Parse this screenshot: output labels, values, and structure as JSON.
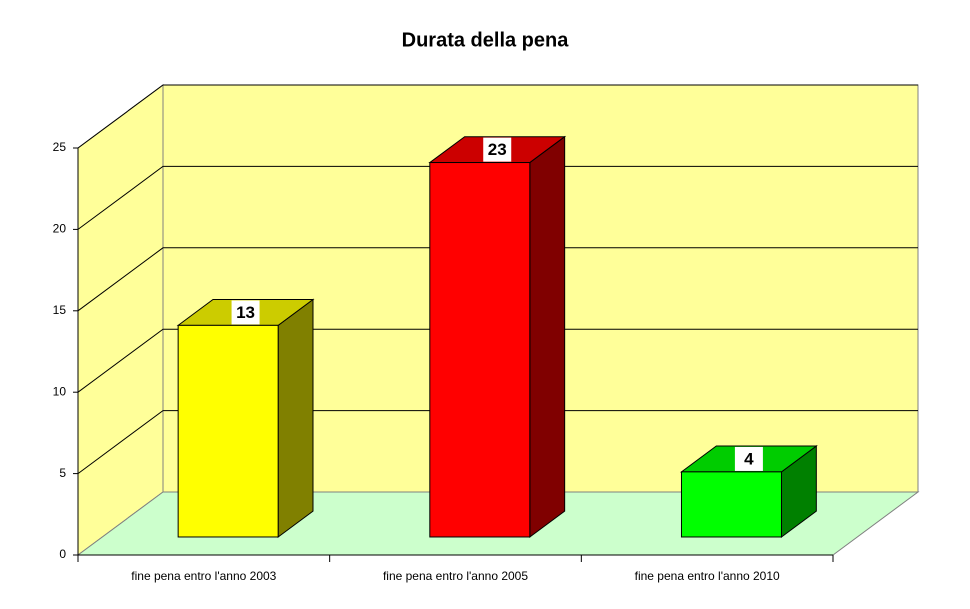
{
  "chart_data": {
    "type": "bar3d",
    "title": "Durata della pena",
    "categories": [
      "fine pena entro l'anno 2003",
      "fine pena entro l'anno 2005",
      "fine pena entro l'anno 2010"
    ],
    "values": [
      13,
      23,
      4
    ],
    "colors": [
      "#ffff00",
      "#ff0000",
      "#00ff00"
    ],
    "ylim": [
      0,
      25
    ],
    "yticks": [
      0,
      5,
      10,
      15,
      20,
      25
    ],
    "grid": true
  }
}
